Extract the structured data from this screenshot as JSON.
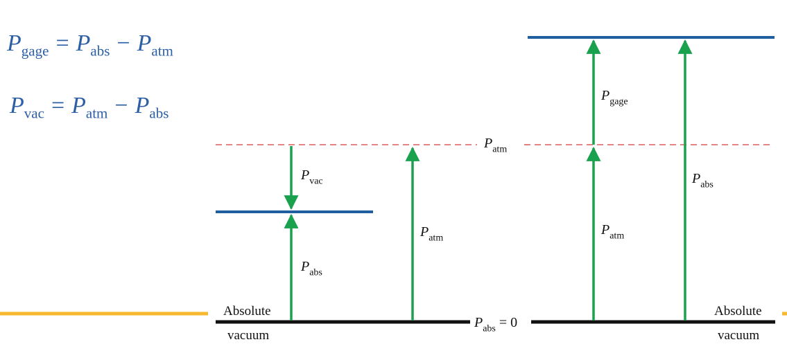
{
  "equations": {
    "gage": {
      "lhs": "P",
      "lhs_sub": "gage",
      "eq": "=",
      "a": "P",
      "a_sub": "abs",
      "minus": "−",
      "b": "P",
      "b_sub": "atm"
    },
    "vac": {
      "lhs": "P",
      "lhs_sub": "vac",
      "eq": "=",
      "a": "P",
      "a_sub": "atm",
      "minus": "−",
      "b": "P",
      "b_sub": "abs"
    }
  },
  "labels": {
    "atm_line": {
      "sym": "P",
      "sub": "atm"
    },
    "vac": {
      "sym": "P",
      "sub": "vac"
    },
    "abs_left": {
      "sym": "P",
      "sub": "abs"
    },
    "atm_mid": {
      "sym": "P",
      "sub": "atm"
    },
    "gage": {
      "sym": "P",
      "sub": "gage"
    },
    "atm_right": {
      "sym": "P",
      "sub": "atm"
    },
    "abs_right": {
      "sym": "P",
      "sub": "abs"
    },
    "zero": {
      "sym": "P",
      "sub": "abs",
      "rest": "= 0"
    }
  },
  "words": {
    "absolute_left": "Absolute",
    "vacuum_left": "vacuum",
    "absolute_right": "Absolute",
    "vacuum_right": "vacuum"
  },
  "colors": {
    "level_line": "#1f5fa0",
    "atm_dash": "#d63a3a",
    "arrow": "#1aa14d",
    "baseline": "#111111",
    "accent_bar": "#f5b82e",
    "equation_text": "#2c5fa5"
  }
}
